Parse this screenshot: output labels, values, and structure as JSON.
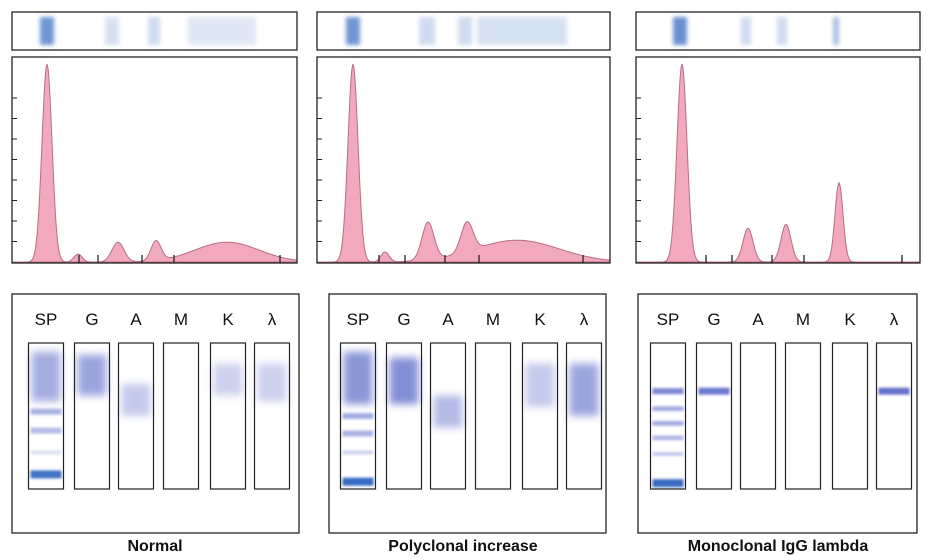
{
  "lane_labels": [
    "SP",
    "G",
    "A",
    "M",
    "K",
    "λ"
  ],
  "panels": [
    {
      "id": "normal",
      "caption": "Normal"
    },
    {
      "id": "polyclonal",
      "caption": "Polyclonal increase"
    },
    {
      "id": "monoclonal",
      "caption": "Monoclonal IgG lambda"
    }
  ],
  "colors": {
    "densitometry_fill": "#f2a9bd",
    "densitometry_line": "#b86d86",
    "stain_blue": "#2f64c0",
    "ife_purple": "#5a6bc8",
    "frame": "#222222"
  }
}
